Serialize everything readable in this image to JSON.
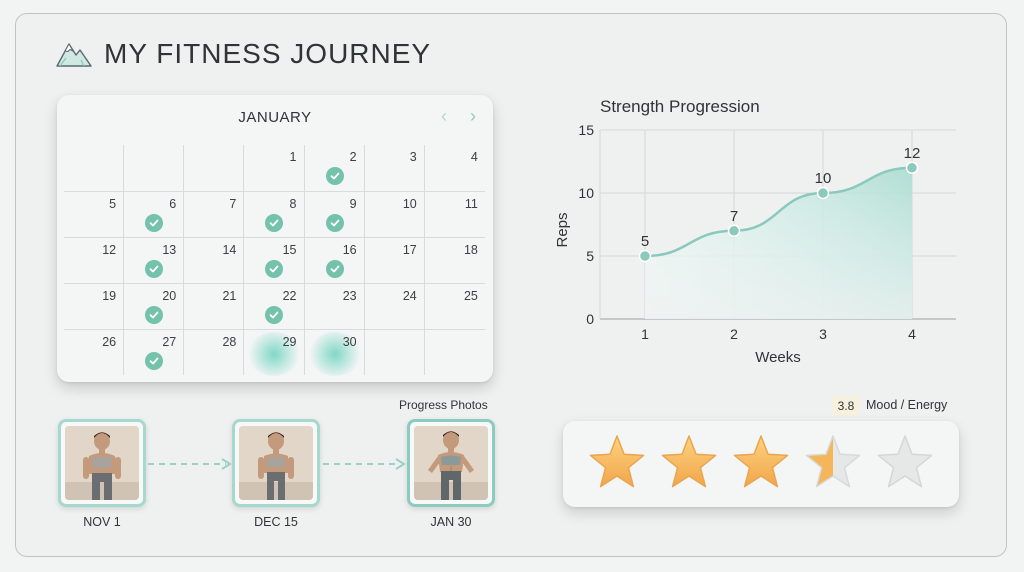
{
  "app": {
    "title": "MY FITNESS JOURNEY",
    "logo_icon": "mountain-icon"
  },
  "calendar": {
    "month": "JANUARY",
    "prev_icon": "chevron-left-icon",
    "next_icon": "chevron-right-icon",
    "cells": [
      "",
      "",
      "",
      "1",
      "2",
      "3",
      "4",
      "5",
      "6",
      "7",
      "8",
      "9",
      "10",
      "11",
      "12",
      "13",
      "14",
      "15",
      "16",
      "17",
      "18",
      "19",
      "20",
      "21",
      "22",
      "23",
      "24",
      "25",
      "26",
      "27",
      "28",
      "29",
      "30",
      "",
      ""
    ],
    "completed_days": [
      2,
      6,
      8,
      9,
      13,
      15,
      16,
      20,
      22,
      27
    ],
    "upcoming_highlight_days": [
      29,
      30
    ],
    "accent_color": "#74c2aa"
  },
  "chart_data": {
    "type": "area",
    "title": "Strength Progression",
    "xlabel": "Weeks",
    "ylabel": "Reps",
    "x": [
      1,
      2,
      3,
      4
    ],
    "values": [
      5,
      7,
      10,
      12
    ],
    "data_labels": [
      "5",
      "7",
      "10",
      "12"
    ],
    "x_ticks": [
      "1",
      "2",
      "3",
      "4"
    ],
    "y_ticks": [
      "0",
      "5",
      "10",
      "15"
    ],
    "ylim": [
      0,
      15
    ],
    "grid": true,
    "line_color": "#8cc9bd"
  },
  "progress_photos": {
    "label": "Progress Photos",
    "items": [
      {
        "date": "NOV 1"
      },
      {
        "date": "DEC 15"
      },
      {
        "date": "JAN 30"
      }
    ]
  },
  "mood": {
    "value": "3.8",
    "label": "Mood / Energy",
    "rating": 3.5,
    "max": 5,
    "star_color": "#f4b45a"
  }
}
